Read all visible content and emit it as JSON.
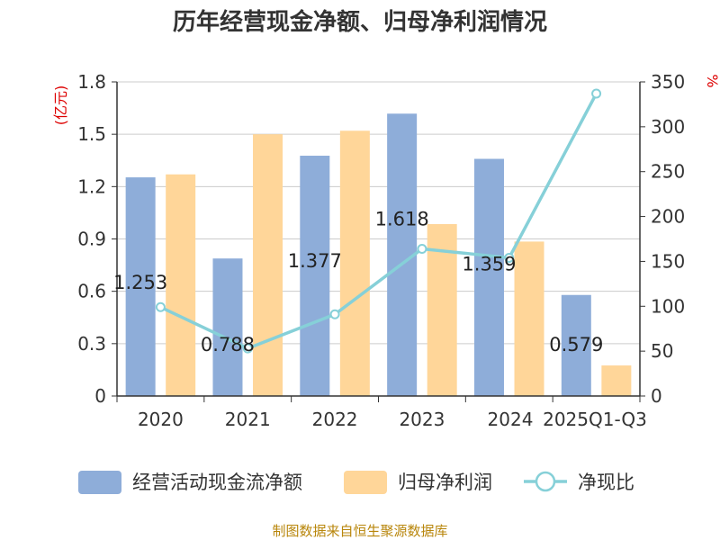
{
  "chart_data": {
    "type": "bar",
    "title": "历年经营现金净额、归母净利润情况",
    "categories": [
      "2020",
      "2021",
      "2022",
      "2023",
      "2024",
      "2025Q1-Q3"
    ],
    "series": [
      {
        "name": "经营活动现金流净额",
        "type": "bar",
        "axis": "left",
        "values": [
          1.253,
          0.788,
          1.377,
          1.618,
          1.359,
          0.579
        ],
        "labels": [
          "1.253",
          "0.788",
          "1.377",
          "1.618",
          "1.359",
          "0.579"
        ],
        "color": "#8eadd9"
      },
      {
        "name": "归母净利润",
        "type": "bar",
        "axis": "left",
        "values": [
          1.27,
          1.5,
          1.52,
          0.985,
          0.885,
          0.175
        ],
        "color": "#ffd699"
      },
      {
        "name": "净现比",
        "type": "line",
        "axis": "right",
        "values": [
          99,
          53,
          91,
          164,
          154,
          337
        ],
        "color": "#86d0d8"
      }
    ],
    "y_left": {
      "unit": "(亿元)",
      "ylim": [
        0,
        1.8
      ],
      "ticks": [
        "0",
        "0.3",
        "0.6",
        "0.9",
        "1.2",
        "1.5",
        "1.8"
      ]
    },
    "y_right": {
      "unit": "%",
      "ylim": [
        0,
        350
      ],
      "ticks": [
        "0",
        "50",
        "100",
        "150",
        "200",
        "250",
        "300",
        "350"
      ]
    },
    "grid": true,
    "legend_position": "bottom"
  },
  "source": "制图数据来自恒生聚源数据库"
}
